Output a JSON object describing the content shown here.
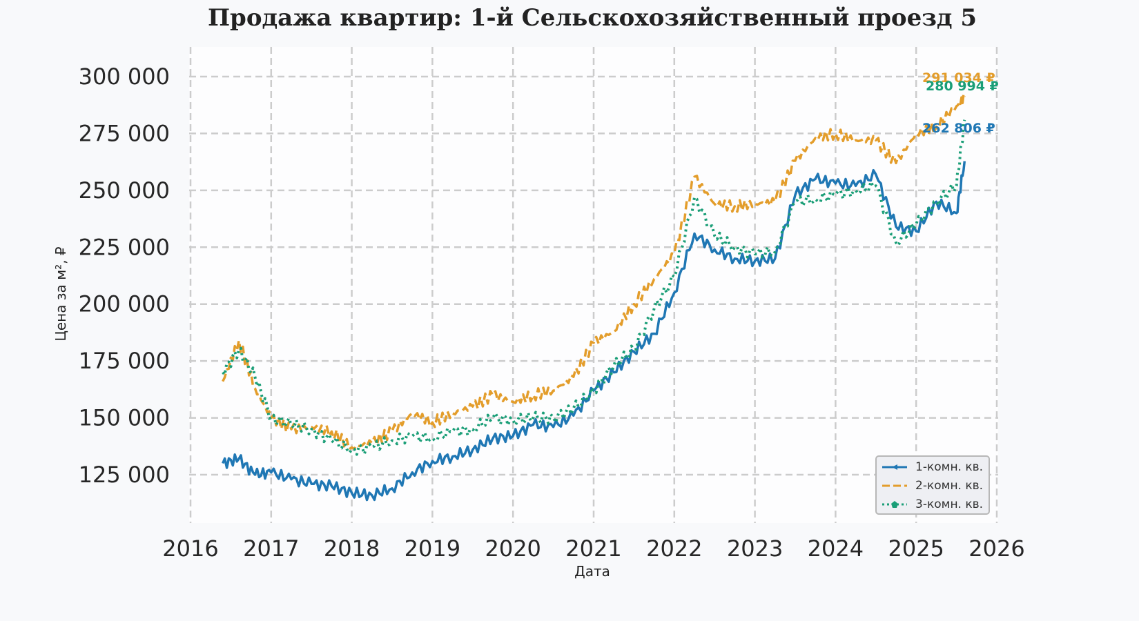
{
  "title": "Продажа квартир: 1-й Сельскохозяйственный проезд 5",
  "axes": {
    "xlabel": "Дата",
    "ylabel": "Цена за м², ₽",
    "xticks": [
      "2016",
      "2017",
      "2018",
      "2019",
      "2020",
      "2021",
      "2022",
      "2023",
      "2024",
      "2025",
      "2026"
    ],
    "yticks": [
      "125 000",
      "150 000",
      "175 000",
      "200 000",
      "225 000",
      "250 000",
      "275 000",
      "300 000"
    ]
  },
  "legend": {
    "items": [
      {
        "label": "1-комн. кв.",
        "color": "#1f77b4",
        "style": "solid-triangle"
      },
      {
        "label": "2-комн. кв.",
        "color": "#e39d2b",
        "style": "dashed"
      },
      {
        "label": "3-комн. кв.",
        "color": "#1a9e77",
        "style": "dotted-pentagon"
      }
    ]
  },
  "annotations": [
    {
      "text": "291 034 ₽",
      "color": "#e39d2b"
    },
    {
      "text": "280 994 ₽",
      "color": "#1a9e77"
    },
    {
      "text": "262 806 ₽",
      "color": "#1f77b4"
    }
  ],
  "chart_data": {
    "type": "line",
    "title": "Продажа квартир: 1-й Сельскохозяйственный проезд 5",
    "xlabel": "Дата",
    "ylabel": "Цена за м², ₽",
    "xlim": [
      2016,
      2026
    ],
    "ylim": [
      105000,
      313000
    ],
    "grid": true,
    "legend_position": "lower right",
    "x": [
      2016.4,
      2016.6,
      2016.8,
      2017.0,
      2017.25,
      2017.5,
      2017.75,
      2018.0,
      2018.25,
      2018.5,
      2018.75,
      2019.0,
      2019.25,
      2019.5,
      2019.75,
      2020.0,
      2020.25,
      2020.5,
      2020.75,
      2021.0,
      2021.25,
      2021.5,
      2021.75,
      2022.0,
      2022.25,
      2022.5,
      2022.75,
      2023.0,
      2023.25,
      2023.5,
      2023.75,
      2024.0,
      2024.25,
      2024.5,
      2024.75,
      2025.0,
      2025.25,
      2025.5,
      2025.6
    ],
    "series": [
      {
        "name": "1-комн. кв.",
        "values": [
          130000,
          132000,
          125000,
          126000,
          123000,
          121000,
          120000,
          117000,
          116000,
          119000,
          126000,
          131000,
          133000,
          136000,
          141000,
          142000,
          147000,
          146000,
          151000,
          162000,
          170000,
          179000,
          187000,
          205000,
          231000,
          224000,
          220000,
          219000,
          220000,
          248000,
          255000,
          253000,
          252000,
          257000,
          234000,
          232000,
          245000,
          240000,
          262806
        ]
      },
      {
        "name": "2-комн. кв.",
        "values": [
          166000,
          184000,
          163000,
          150000,
          145000,
          146000,
          144000,
          137000,
          139000,
          144000,
          152000,
          148000,
          152000,
          155000,
          160000,
          157000,
          160000,
          162000,
          168000,
          183000,
          188000,
          200000,
          211000,
          222000,
          256000,
          244000,
          243000,
          244000,
          245000,
          263000,
          273000,
          275000,
          272000,
          272000,
          262000,
          275000,
          278000,
          287000,
          291034
        ]
      },
      {
        "name": "3-комн. кв.",
        "values": [
          170000,
          180000,
          168000,
          150000,
          147000,
          145000,
          140000,
          136000,
          137000,
          140000,
          142000,
          141000,
          144000,
          145000,
          150000,
          149000,
          150000,
          150000,
          154000,
          162000,
          173000,
          180000,
          198000,
          212000,
          247000,
          230000,
          225000,
          222000,
          223000,
          245000,
          246000,
          248000,
          250000,
          252000,
          227000,
          235000,
          245000,
          252000,
          280994
        ]
      }
    ]
  }
}
